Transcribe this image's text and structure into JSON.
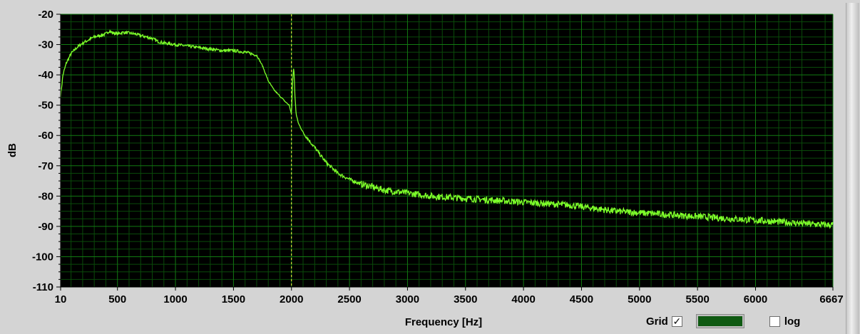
{
  "colors": {
    "plot_background": "#000000",
    "grid_major": "#127a12",
    "grid_minor": "#0a4a0a",
    "trace": "#7dff2a",
    "cursor": "#ffff44",
    "grid_swatch": "#0f5a12"
  },
  "controls": {
    "grid_label": "Grid",
    "grid_checked": true,
    "log_label": "log",
    "log_checked": false,
    "check_mark": "✓"
  },
  "chart_data": {
    "type": "line",
    "title": "",
    "xlabel": "Frequency [Hz]",
    "ylabel": "dB",
    "xlim": [
      10,
      6667
    ],
    "ylim": [
      -110,
      -20
    ],
    "x_ticks": [
      10,
      500,
      1000,
      1500,
      2000,
      2500,
      3000,
      3500,
      4000,
      4500,
      5000,
      5500,
      6000,
      6667
    ],
    "y_ticks": [
      -20,
      -30,
      -40,
      -50,
      -60,
      -70,
      -80,
      -90,
      -100,
      -110
    ],
    "grid": true,
    "legend": "none",
    "cursor_x": 2000,
    "series": [
      {
        "x": [
          10,
          30,
          60,
          100,
          150,
          200,
          250,
          300,
          350,
          400,
          430,
          450,
          500,
          550,
          600,
          650,
          700,
          750,
          800,
          850,
          900,
          1000,
          1100,
          1200,
          1300,
          1400,
          1500,
          1600,
          1650,
          1700,
          1750,
          1800,
          1850,
          1900,
          1950,
          1980,
          2000,
          2010,
          2020,
          2030,
          2040,
          2060,
          2100,
          2200,
          2300,
          2400,
          2500,
          2600,
          2700,
          2800,
          3000,
          3200,
          3400,
          3600,
          3800,
          4000,
          4200,
          4400,
          4600,
          4800,
          5000,
          5200,
          5400,
          5600,
          5800,
          6000,
          6200,
          6400,
          6600,
          6667
        ],
        "y": [
          -47,
          -40,
          -36,
          -33,
          -31,
          -29.5,
          -28.5,
          -27.5,
          -27,
          -26.5,
          -25.5,
          -26,
          -26.5,
          -26,
          -26.2,
          -26.5,
          -27,
          -27.5,
          -28,
          -29,
          -29.5,
          -30,
          -30.5,
          -31,
          -31.5,
          -32,
          -32,
          -32.5,
          -33,
          -33.5,
          -37,
          -42,
          -45,
          -47,
          -49,
          -50,
          -53,
          -42,
          -37,
          -47,
          -53,
          -56,
          -59,
          -64,
          -69,
          -72.5,
          -74.5,
          -76,
          -77,
          -78,
          -79,
          -80,
          -80.5,
          -81,
          -81.5,
          -82,
          -82.5,
          -83,
          -84,
          -85,
          -85.5,
          -86,
          -86.5,
          -87,
          -87.5,
          -88,
          -88.5,
          -89,
          -89.5,
          -89.5
        ]
      }
    ]
  }
}
